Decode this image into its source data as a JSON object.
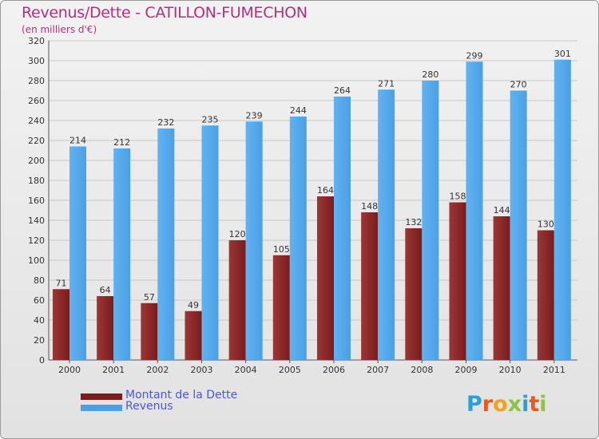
{
  "header": {
    "title": "Revenus/Dette - CATILLON-FUMECHON",
    "subtitle": "(en milliers d'€)"
  },
  "chart_data": {
    "type": "bar",
    "title": "Revenus/Dette - CATILLON-FUMECHON",
    "ylabel": "(en milliers d'€)",
    "xlabel": "",
    "categories": [
      "2000",
      "2001",
      "2002",
      "2003",
      "2004",
      "2005",
      "2006",
      "2007",
      "2008",
      "2009",
      "2010",
      "2011"
    ],
    "series": [
      {
        "name": "Montant de la Dette",
        "values": [
          71,
          64,
          57,
          49,
          120,
          105,
          164,
          148,
          132,
          158,
          144,
          130
        ]
      },
      {
        "name": "Revenus",
        "values": [
          214,
          212,
          232,
          235,
          239,
          244,
          264,
          271,
          280,
          299,
          270,
          301
        ]
      }
    ],
    "ylim": [
      0,
      320
    ],
    "yticks": [
      0,
      20,
      40,
      60,
      80,
      100,
      120,
      140,
      160,
      180,
      200,
      220,
      240,
      260,
      280,
      300,
      320
    ],
    "grid": true,
    "legend": "bottom-left"
  },
  "colors": {
    "dette": "#7a1c1c",
    "dette_light": "#9b3636",
    "revenus": "#4aa0e6",
    "revenus_light": "#62b2f0",
    "title": "#b0327a",
    "legend_text": "#4a57d8",
    "axis_text": "#333333"
  },
  "legend": {
    "items": [
      {
        "label": "Montant de la Dette"
      },
      {
        "label": "Revenus"
      }
    ]
  },
  "brand": {
    "letters": [
      {
        "char": "P",
        "color": "#2a9fd8"
      },
      {
        "char": "r",
        "color": "#e8591a"
      },
      {
        "char": "o",
        "color": "#f2a21a"
      },
      {
        "char": "x",
        "color": "#8cc63f"
      },
      {
        "char": "i",
        "color": "#2a9fd8"
      },
      {
        "char": "t",
        "color": "#e8591a"
      },
      {
        "char": "i",
        "color": "#8cc63f"
      }
    ]
  }
}
